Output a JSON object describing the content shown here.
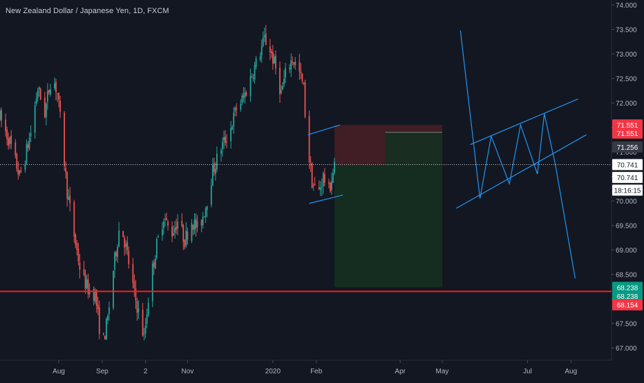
{
  "title": "New Zealand Dollar / Japanese Yen, 1D, FXCM",
  "colors": {
    "background": "#131722",
    "up": "#26a69a",
    "down": "#ef5350",
    "drawing": "#2196f3",
    "support": "#ff1a1a",
    "stop_zone": "#4a1e26",
    "target_zone": "#153020",
    "axis_text": "#b2b5be"
  },
  "chart_data": {
    "type": "candlestick",
    "title": "New Zealand Dollar / Japanese Yen, 1D, FXCM",
    "ylim": [
      66.75,
      74.1
    ],
    "y_ticks": [
      "74.000",
      "73.500",
      "73.000",
      "72.500",
      "72.000",
      "71.500",
      "71.000",
      "70.500",
      "70.000",
      "69.500",
      "69.000",
      "68.500",
      "68.000",
      "67.500",
      "67.000"
    ],
    "x_ticks": [
      "Aug",
      "Sep",
      "2",
      "Nov",
      "2020",
      "Feb",
      "Apr",
      "May",
      "Jul",
      "Aug"
    ],
    "x_tick_dates": [
      "2019-08-01",
      "2019-09-01",
      "2019-10-02",
      "2019-11-01",
      "2020-01-01",
      "2020-02-01",
      "2020-04-01",
      "2020-05-01",
      "2020-07-01",
      "2020-08-01"
    ],
    "x_domain": [
      "2019-06-20",
      "2020-08-30"
    ],
    "close_path": [
      [
        "2019-06-20",
        71.7
      ],
      [
        "2019-06-27",
        71.2
      ],
      [
        "2019-07-04",
        70.5
      ],
      [
        "2019-07-08",
        70.9
      ],
      [
        "2019-07-12",
        71.4
      ],
      [
        "2019-07-17",
        72.3
      ],
      [
        "2019-07-22",
        71.8
      ],
      [
        "2019-07-27",
        72.6
      ],
      [
        "2019-07-31",
        72.2
      ],
      [
        "2019-08-03",
        71.4
      ],
      [
        "2019-08-07",
        70.2
      ],
      [
        "2019-08-12",
        69.3
      ],
      [
        "2019-08-17",
        68.5
      ],
      [
        "2019-08-22",
        68.2
      ],
      [
        "2019-08-27",
        68.1
      ],
      [
        "2019-09-01",
        67.0
      ],
      [
        "2019-09-05",
        67.6
      ],
      [
        "2019-09-09",
        68.6
      ],
      [
        "2019-09-14",
        69.6
      ],
      [
        "2019-09-19",
        68.9
      ],
      [
        "2019-09-24",
        68.1
      ],
      [
        "2019-09-28",
        67.6
      ],
      [
        "2019-10-01",
        67.2
      ],
      [
        "2019-10-05",
        68.3
      ],
      [
        "2019-10-10",
        69.1
      ],
      [
        "2019-10-15",
        69.7
      ],
      [
        "2019-10-20",
        69.3
      ],
      [
        "2019-10-25",
        69.6
      ],
      [
        "2019-10-30",
        69.2
      ],
      [
        "2019-11-04",
        69.6
      ],
      [
        "2019-11-09",
        69.4
      ],
      [
        "2019-11-14",
        69.9
      ],
      [
        "2019-11-19",
        70.6
      ],
      [
        "2019-11-25",
        71.1
      ],
      [
        "2019-12-01",
        71.4
      ],
      [
        "2019-12-06",
        71.9
      ],
      [
        "2019-12-11",
        72.1
      ],
      [
        "2019-12-16",
        72.5
      ],
      [
        "2019-12-20",
        72.8
      ],
      [
        "2019-12-26",
        73.3
      ],
      [
        "2019-12-30",
        73.1
      ],
      [
        "2020-01-03",
        72.7
      ],
      [
        "2020-01-07",
        72.2
      ],
      [
        "2020-01-11",
        72.7
      ],
      [
        "2020-01-15",
        72.9
      ],
      [
        "2020-01-19",
        72.7
      ],
      [
        "2020-01-23",
        72.3
      ],
      [
        "2020-01-25",
        71.3
      ],
      [
        "2020-01-29",
        70.4
      ],
      [
        "2020-02-02",
        70.1
      ],
      [
        "2020-02-06",
        70.5
      ],
      [
        "2020-02-10",
        70.2
      ],
      [
        "2020-02-14",
        70.7
      ]
    ],
    "price_labels": [
      {
        "text": "71.551",
        "price": 71.551,
        "color": "#f23645"
      },
      {
        "text": "71.551",
        "price": 71.385,
        "color": "#f23645"
      },
      {
        "text": "71.256",
        "price": 71.1,
        "color": "#363a45"
      },
      {
        "text": "70.741",
        "price": 70.741,
        "color": "#ffffff",
        "fg": "#131722"
      },
      {
        "text": "70.741",
        "price": 70.48,
        "color": "#ffffff",
        "fg": "#131722"
      },
      {
        "text": "18:16:15",
        "price": 70.22,
        "color": "#ffffff",
        "fg": "#131722"
      },
      {
        "text": "68.238",
        "price": 68.238,
        "color": "#089981"
      },
      {
        "text": "68.238",
        "price": 68.06,
        "color": "#089981"
      },
      {
        "text": "68.154",
        "price": 67.88,
        "color": "#f23645"
      }
    ],
    "current_price": 70.741,
    "support_level": 68.154,
    "position": {
      "type": "short",
      "entry": 70.741,
      "stop": 71.551,
      "target": 68.238,
      "start": "2020-02-14",
      "end": "2020-05-01"
    },
    "drawings": {
      "wedge": [
        [
          [
            "2020-01-26",
            71.35
          ],
          [
            "2020-02-18",
            71.55
          ]
        ],
        [
          [
            "2020-01-27",
            69.95
          ],
          [
            "2020-02-20",
            70.12
          ]
        ]
      ],
      "channel": [
        [
          [
            "2020-05-21",
            71.15
          ],
          [
            "2020-08-06",
            72.08
          ]
        ],
        [
          [
            "2020-05-11",
            69.85
          ],
          [
            "2020-08-12",
            71.35
          ]
        ]
      ],
      "projection": [
        [
          "2020-05-14",
          73.48
        ],
        [
          "2020-05-28",
          70.05
        ],
        [
          "2020-06-05",
          71.32
        ],
        [
          "2020-06-18",
          70.35
        ],
        [
          "2020-06-26",
          71.55
        ],
        [
          "2020-07-08",
          70.55
        ],
        [
          "2020-07-13",
          71.78
        ],
        [
          "2020-07-21",
          70.72
        ],
        [
          "2020-08-04",
          68.42
        ]
      ]
    }
  }
}
